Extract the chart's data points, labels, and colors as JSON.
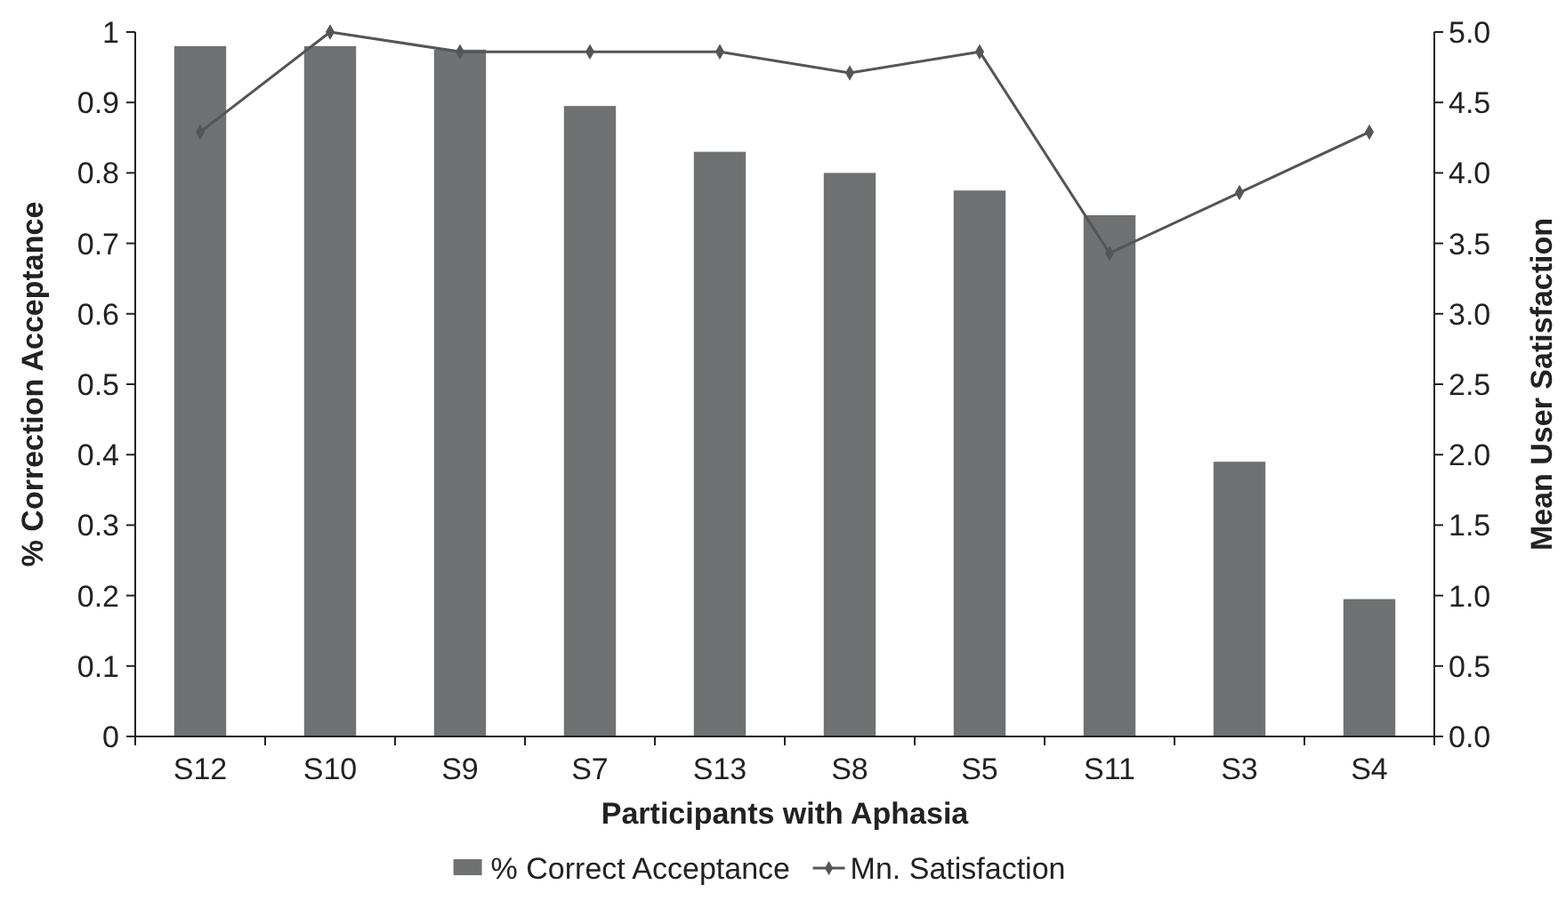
{
  "chart_data": {
    "type": "bar",
    "xlabel": "Participants with Aphasia",
    "ylabel": "% Correction Acceptance",
    "y2label": "Mean User Satisfaction",
    "categories": [
      "S12",
      "S10",
      "S9",
      "S7",
      "S13",
      "S8",
      "S5",
      "S11",
      "S3",
      "S4"
    ],
    "series": [
      {
        "name": "% Correct Acceptance",
        "color": "#707173",
        "values": [
          0.98,
          0.98,
          0.975,
          0.895,
          0.83,
          0.8,
          0.775,
          0.74,
          0.39,
          0.195
        ]
      },
      {
        "name": "Mn. Satisfaction",
        "type": "line",
        "axis": "y2",
        "color": "#555555",
        "marker": "diamond",
        "values": [
          4.29,
          5.0,
          4.86,
          4.86,
          4.86,
          4.71,
          4.86,
          3.43,
          3.86,
          4.29
        ]
      }
    ],
    "ylim": [
      0,
      1
    ],
    "yticks": [
      0,
      0.1,
      0.2,
      0.3,
      0.4,
      0.5,
      0.6,
      0.7,
      0.8,
      0.9,
      1
    ],
    "y2lim": [
      0,
      5
    ],
    "y2ticks": [
      {
        "value": 0,
        "label": "0.0"
      },
      {
        "value": 0.5,
        "label": "0.5"
      },
      {
        "value": 1,
        "label": "1.0"
      },
      {
        "value": 1.5,
        "label": "1.5"
      },
      {
        "value": 2,
        "label": "2.0"
      },
      {
        "value": 2.5,
        "label": "2.5"
      },
      {
        "value": 3,
        "label": "3.0"
      },
      {
        "value": 3.5,
        "label": "3.5"
      },
      {
        "value": 4,
        "label": "4.0"
      },
      {
        "value": 4.5,
        "label": "4.5"
      },
      {
        "value": 5,
        "label": "5.0"
      }
    ],
    "legend": "bottom",
    "grid": false
  }
}
